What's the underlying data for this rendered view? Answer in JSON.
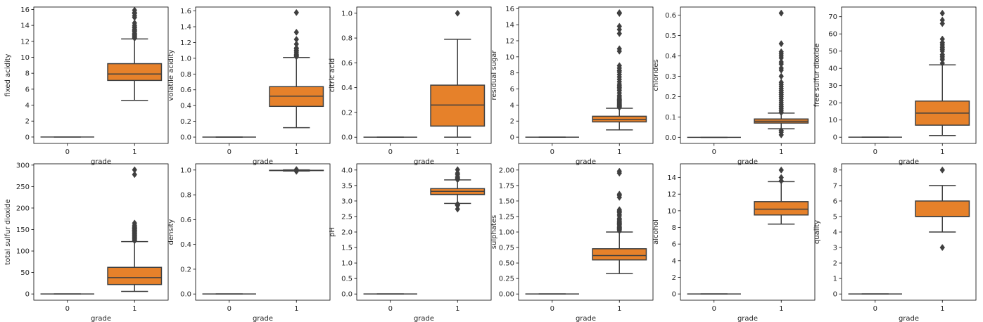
{
  "figure": {
    "background": "#ffffff"
  },
  "style": {
    "empty_box_color": "#1f77b4",
    "box_color": "#e6812a",
    "line_color": "#3f3f3f",
    "spine_color": "#000000"
  },
  "chart_data": [
    {
      "type": "box",
      "xlabel": "grade",
      "ylabel": "fixed acidity",
      "categories": [
        "0",
        "1"
      ],
      "ylim": [
        -0.8,
        16.3
      ],
      "yticks": [
        0,
        2,
        4,
        6,
        8,
        10,
        12,
        14,
        16
      ],
      "ytick_labels": [
        "0",
        "2",
        "4",
        "6",
        "8",
        "10",
        "12",
        "14",
        "16"
      ],
      "boxes": [
        {
          "category": "0",
          "whislo": 0,
          "q1": 0,
          "med": 0,
          "q3": 0,
          "whishi": 0,
          "fliers": []
        },
        {
          "category": "1",
          "whislo": 4.6,
          "q1": 7.1,
          "med": 7.9,
          "q3": 9.2,
          "whishi": 12.3,
          "fliers": [
            12.4,
            12.5,
            12.6,
            12.7,
            12.8,
            12.9,
            13.0,
            13.2,
            13.3,
            13.4,
            13.5,
            13.7,
            13.8,
            14.0,
            14.3,
            15.0,
            15.2,
            15.5,
            15.6,
            15.9
          ]
        }
      ]
    },
    {
      "type": "box",
      "xlabel": "grade",
      "ylabel": "volatile acidity",
      "categories": [
        "0",
        "1"
      ],
      "ylim": [
        -0.08,
        1.65
      ],
      "yticks": [
        0,
        0.2,
        0.4,
        0.6,
        0.8,
        1.0,
        1.2,
        1.4,
        1.6
      ],
      "ytick_labels": [
        "0.0",
        "0.2",
        "0.4",
        "0.6",
        "0.8",
        "1.0",
        "1.2",
        "1.4",
        "1.6"
      ],
      "boxes": [
        {
          "category": "0",
          "whislo": 0,
          "q1": 0,
          "med": 0,
          "q3": 0,
          "whishi": 0,
          "fliers": []
        },
        {
          "category": "1",
          "whislo": 0.12,
          "q1": 0.39,
          "med": 0.52,
          "q3": 0.64,
          "whishi": 1.01,
          "fliers": [
            1.02,
            1.03,
            1.04,
            1.05,
            1.07,
            1.09,
            1.1,
            1.12,
            1.13,
            1.18,
            1.24,
            1.33,
            1.58
          ]
        }
      ]
    },
    {
      "type": "box",
      "xlabel": "grade",
      "ylabel": "citric acid",
      "categories": [
        "0",
        "1"
      ],
      "ylim": [
        -0.05,
        1.05
      ],
      "yticks": [
        0,
        0.2,
        0.4,
        0.6,
        0.8,
        1.0
      ],
      "ytick_labels": [
        "0.0",
        "0.2",
        "0.4",
        "0.6",
        "0.8",
        "1.0"
      ],
      "boxes": [
        {
          "category": "0",
          "whislo": 0,
          "q1": 0,
          "med": 0,
          "q3": 0,
          "whishi": 0,
          "fliers": []
        },
        {
          "category": "1",
          "whislo": 0.0,
          "q1": 0.09,
          "med": 0.26,
          "q3": 0.42,
          "whishi": 0.79,
          "fliers": [
            1.0
          ]
        }
      ]
    },
    {
      "type": "box",
      "xlabel": "grade",
      "ylabel": "residual sugar",
      "categories": [
        "0",
        "1"
      ],
      "ylim": [
        -0.78,
        16.2
      ],
      "yticks": [
        0,
        2,
        4,
        6,
        8,
        10,
        12,
        14,
        16
      ],
      "ytick_labels": [
        "0",
        "2",
        "4",
        "6",
        "8",
        "10",
        "12",
        "14",
        "16"
      ],
      "boxes": [
        {
          "category": "0",
          "whislo": 0,
          "q1": 0,
          "med": 0,
          "q3": 0,
          "whishi": 0,
          "fliers": []
        },
        {
          "category": "1",
          "whislo": 0.9,
          "q1": 1.9,
          "med": 2.2,
          "q3": 2.6,
          "whishi": 3.6,
          "fliers": [
            3.7,
            3.8,
            3.9,
            4.0,
            4.1,
            4.2,
            4.3,
            4.4,
            4.5,
            4.6,
            4.7,
            4.8,
            5.0,
            5.2,
            5.5,
            5.8,
            6.0,
            6.2,
            6.4,
            6.6,
            6.9,
            7.2,
            7.5,
            7.8,
            8.1,
            8.3,
            8.6,
            8.9,
            10.7,
            11.0,
            12.9,
            13.4,
            13.8,
            15.4,
            15.5
          ]
        }
      ]
    },
    {
      "type": "box",
      "xlabel": "grade",
      "ylabel": "chlorides",
      "categories": [
        "0",
        "1"
      ],
      "ylim": [
        -0.03,
        0.64
      ],
      "yticks": [
        0,
        0.1,
        0.2,
        0.3,
        0.4,
        0.5,
        0.6
      ],
      "ytick_labels": [
        "0.0",
        "0.1",
        "0.2",
        "0.3",
        "0.4",
        "0.5",
        "0.6"
      ],
      "boxes": [
        {
          "category": "0",
          "whislo": 0,
          "q1": 0,
          "med": 0,
          "q3": 0,
          "whishi": 0,
          "fliers": []
        },
        {
          "category": "1",
          "whislo": 0.042,
          "q1": 0.07,
          "med": 0.079,
          "q3": 0.09,
          "whishi": 0.119,
          "fliers": [
            0.012,
            0.025,
            0.034,
            0.122,
            0.13,
            0.14,
            0.15,
            0.16,
            0.17,
            0.18,
            0.19,
            0.2,
            0.21,
            0.22,
            0.23,
            0.24,
            0.25,
            0.26,
            0.27,
            0.3,
            0.33,
            0.34,
            0.36,
            0.37,
            0.39,
            0.4,
            0.41,
            0.42,
            0.46,
            0.61
          ]
        }
      ]
    },
    {
      "type": "box",
      "xlabel": "grade",
      "ylabel": "free sulfur dioxide",
      "categories": [
        "0",
        "1"
      ],
      "ylim": [
        -3.6,
        75.6
      ],
      "yticks": [
        0,
        10,
        20,
        30,
        40,
        50,
        60,
        70
      ],
      "ytick_labels": [
        "0",
        "10",
        "20",
        "30",
        "40",
        "50",
        "60",
        "70"
      ],
      "boxes": [
        {
          "category": "0",
          "whislo": 0,
          "q1": 0,
          "med": 0,
          "q3": 0,
          "whishi": 0,
          "fliers": []
        },
        {
          "category": "1",
          "whislo": 1,
          "q1": 7,
          "med": 14,
          "q3": 21,
          "whishi": 42,
          "fliers": [
            43,
            45,
            46,
            47,
            48,
            50,
            51,
            52,
            53,
            54,
            55,
            57,
            66,
            68,
            72
          ]
        }
      ]
    },
    {
      "type": "box",
      "xlabel": "grade",
      "ylabel": "total sulfur dioxide",
      "categories": [
        "0",
        "1"
      ],
      "ylim": [
        -14.5,
        303
      ],
      "yticks": [
        0,
        50,
        100,
        150,
        200,
        250,
        300
      ],
      "ytick_labels": [
        "0",
        "50",
        "100",
        "150",
        "200",
        "250",
        "300"
      ],
      "boxes": [
        {
          "category": "0",
          "whislo": 0,
          "q1": 0,
          "med": 0,
          "q3": 0,
          "whishi": 0,
          "fliers": []
        },
        {
          "category": "1",
          "whislo": 6,
          "q1": 22,
          "med": 38,
          "q3": 62,
          "whishi": 122,
          "fliers": [
            124,
            126,
            128,
            130,
            131,
            133,
            135,
            136,
            138,
            140,
            141,
            143,
            145,
            147,
            148,
            149,
            151,
            152,
            153,
            155,
            157,
            160,
            165,
            278,
            289
          ]
        }
      ]
    },
    {
      "type": "box",
      "xlabel": "grade",
      "ylabel": "density",
      "categories": [
        "0",
        "1"
      ],
      "ylim": [
        -0.05,
        1.05
      ],
      "yticks": [
        0,
        0.2,
        0.4,
        0.6,
        0.8,
        1.0
      ],
      "ytick_labels": [
        "0.0",
        "0.2",
        "0.4",
        "0.6",
        "0.8",
        "1.0"
      ],
      "boxes": [
        {
          "category": "0",
          "whislo": 0,
          "q1": 0,
          "med": 0,
          "q3": 0,
          "whishi": 0,
          "fliers": []
        },
        {
          "category": "1",
          "whislo": 0.9922,
          "q1": 0.9956,
          "med": 0.9968,
          "q3": 0.9978,
          "whishi": 1.001,
          "fliers": [
            0.9901,
            0.9907,
            0.9912,
            0.9917,
            1.0015,
            1.002,
            1.003,
            1.0037
          ]
        }
      ]
    },
    {
      "type": "box",
      "xlabel": "grade",
      "ylabel": "pH",
      "categories": [
        "0",
        "1"
      ],
      "ylim": [
        -0.2,
        4.2
      ],
      "yticks": [
        0,
        0.5,
        1.0,
        1.5,
        2.0,
        2.5,
        3.0,
        3.5,
        4.0
      ],
      "ytick_labels": [
        "0.0",
        "0.5",
        "1.0",
        "1.5",
        "2.0",
        "2.5",
        "3.0",
        "3.5",
        "4.0"
      ],
      "boxes": [
        {
          "category": "0",
          "whislo": 0,
          "q1": 0,
          "med": 0,
          "q3": 0,
          "whishi": 0,
          "fliers": []
        },
        {
          "category": "1",
          "whislo": 2.92,
          "q1": 3.21,
          "med": 3.31,
          "q3": 3.4,
          "whishi": 3.68,
          "fliers": [
            2.74,
            2.86,
            2.87,
            2.88,
            2.89,
            2.9,
            3.69,
            3.7,
            3.71,
            3.72,
            3.75,
            3.78,
            3.85,
            3.9,
            4.01
          ]
        }
      ]
    },
    {
      "type": "box",
      "xlabel": "grade",
      "ylabel": "sulphates",
      "categories": [
        "0",
        "1"
      ],
      "ylim": [
        -0.1,
        2.1
      ],
      "yticks": [
        0,
        0.25,
        0.5,
        0.75,
        1.0,
        1.25,
        1.5,
        1.75,
        2.0
      ],
      "ytick_labels": [
        "0.00",
        "0.25",
        "0.50",
        "0.75",
        "1.00",
        "1.25",
        "1.50",
        "1.75",
        "2.00"
      ],
      "boxes": [
        {
          "category": "0",
          "whislo": 0,
          "q1": 0,
          "med": 0,
          "q3": 0,
          "whishi": 0,
          "fliers": []
        },
        {
          "category": "1",
          "whislo": 0.33,
          "q1": 0.55,
          "med": 0.62,
          "q3": 0.73,
          "whishi": 1.0,
          "fliers": [
            1.02,
            1.04,
            1.05,
            1.06,
            1.07,
            1.08,
            1.1,
            1.12,
            1.13,
            1.14,
            1.15,
            1.17,
            1.18,
            1.2,
            1.22,
            1.26,
            1.28,
            1.31,
            1.33,
            1.34,
            1.36,
            1.56,
            1.59,
            1.61,
            1.95,
            1.98
          ]
        }
      ]
    },
    {
      "type": "box",
      "xlabel": "grade",
      "ylabel": "alcohol",
      "categories": [
        "0",
        "1"
      ],
      "ylim": [
        -0.75,
        15.65
      ],
      "yticks": [
        0,
        2,
        4,
        6,
        8,
        10,
        12,
        14
      ],
      "ytick_labels": [
        "0",
        "2",
        "4",
        "6",
        "8",
        "10",
        "12",
        "14"
      ],
      "boxes": [
        {
          "category": "0",
          "whislo": 0,
          "q1": 0,
          "med": 0,
          "q3": 0,
          "whishi": 0,
          "fliers": []
        },
        {
          "category": "1",
          "whislo": 8.4,
          "q1": 9.5,
          "med": 10.2,
          "q3": 11.1,
          "whishi": 13.5,
          "fliers": [
            13.6,
            14.0,
            14.9
          ]
        }
      ]
    },
    {
      "type": "box",
      "xlabel": "grade",
      "ylabel": "quality",
      "categories": [
        "0",
        "1"
      ],
      "ylim": [
        -0.4,
        8.4
      ],
      "yticks": [
        0,
        1,
        2,
        3,
        4,
        5,
        6,
        7,
        8
      ],
      "ytick_labels": [
        "0",
        "1",
        "2",
        "3",
        "4",
        "5",
        "6",
        "7",
        "8"
      ],
      "boxes": [
        {
          "category": "0",
          "whislo": 0,
          "q1": 0,
          "med": 0,
          "q3": 0,
          "whishi": 0,
          "fliers": []
        },
        {
          "category": "1",
          "whislo": 4,
          "q1": 5,
          "med": 5,
          "q3": 6,
          "whishi": 7,
          "fliers": [
            3,
            8
          ]
        }
      ]
    }
  ]
}
